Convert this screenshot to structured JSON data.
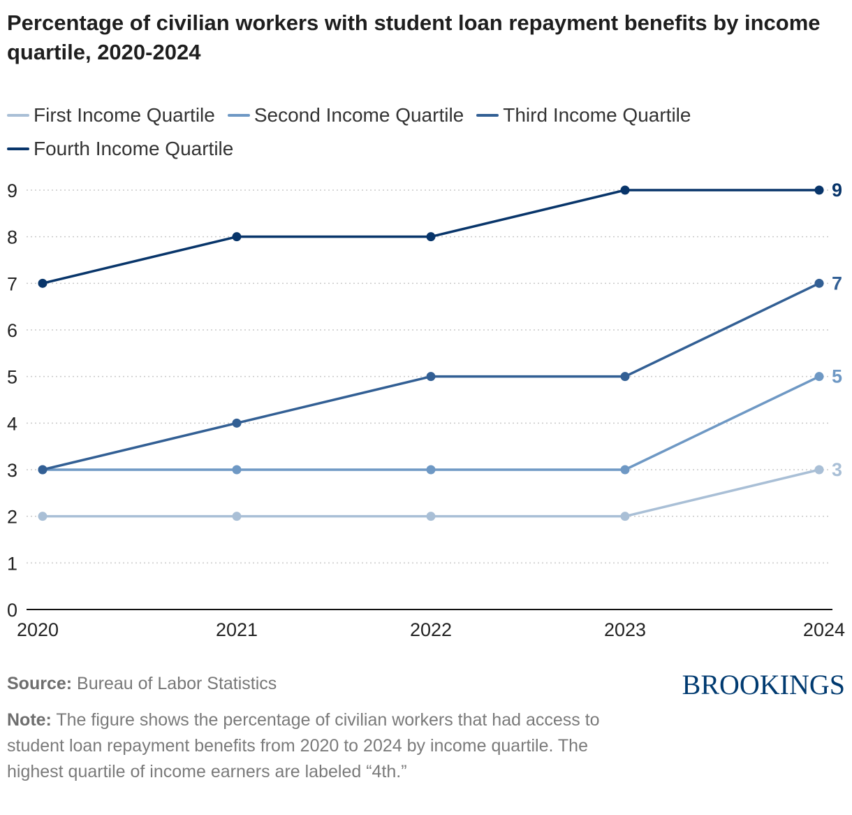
{
  "title": "Percentage of civilian workers with student loan repayment benefits by income quartile, 2020-2024",
  "brand": "BROOKINGS",
  "source": {
    "label": "Source:",
    "text": " Bureau of Labor Statistics"
  },
  "note": {
    "label": "Note:",
    "text": " The figure shows the percentage of civilian workers that had access to student loan repayment benefits from 2020 to 2024 by income quartile. The highest quartile of income earners are labeled “4th.”"
  },
  "chart_data": {
    "type": "line",
    "title": "Percentage of civilian workers with student loan repayment benefits by income quartile, 2020-2024",
    "xlabel": "",
    "ylabel": "",
    "x": [
      "2020",
      "2021",
      "2022",
      "2023",
      "2024"
    ],
    "ylim": [
      0,
      9
    ],
    "yticks": [
      0,
      1,
      2,
      3,
      4,
      5,
      6,
      7,
      8,
      9
    ],
    "grid": true,
    "legend_position": "top",
    "series": [
      {
        "name": "First Income Quartile",
        "color": "#a9bfd6",
        "values": [
          2,
          2,
          2,
          2,
          3
        ],
        "end_label": "3"
      },
      {
        "name": "Second Income Quartile",
        "color": "#6e98c4",
        "values": [
          3,
          3,
          3,
          3,
          5
        ],
        "end_label": "5"
      },
      {
        "name": "Third Income Quartile",
        "color": "#325f94",
        "values": [
          3,
          4,
          5,
          5,
          7
        ],
        "end_label": "7"
      },
      {
        "name": "Fourth Income Quartile",
        "color": "#08356a",
        "values": [
          7,
          8,
          8,
          9,
          9
        ],
        "end_label": "9"
      }
    ]
  }
}
